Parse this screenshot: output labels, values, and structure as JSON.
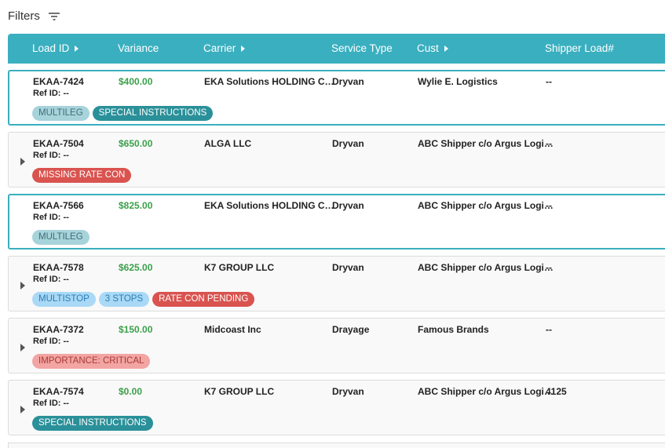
{
  "filters": {
    "label": "Filters"
  },
  "table": {
    "columns": [
      {
        "label": "Load ID",
        "sortable": true
      },
      {
        "label": "Variance",
        "sortable": false
      },
      {
        "label": "Carrier",
        "sortable": true
      },
      {
        "label": "Service Type",
        "sortable": false
      },
      {
        "label": "Cust",
        "sortable": true
      },
      {
        "label": "Shipper Load#",
        "sortable": false
      }
    ],
    "rows": [
      {
        "cells": [
          "EKAA-7424",
          "$400.00",
          "EKA Solutions HOLDING C…",
          "Dryvan",
          "Wylie E. Logistics",
          "--"
        ],
        "ref": "Ref ID: --",
        "highlighted": true,
        "expandable": false,
        "tags": [
          {
            "label": "MULTILEG",
            "background": "#a7d3db",
            "color": "#3f6e77"
          },
          {
            "label": "SPECIAL INSTRUCTIONS",
            "background": "#2a9099",
            "color": "#ffffff"
          }
        ]
      },
      {
        "cells": [
          "EKAA-7504",
          "$650.00",
          "ALGA LLC",
          "Dryvan",
          "ABC Shipper c/o Argus Logi…",
          "--"
        ],
        "ref": "Ref ID: --",
        "highlighted": false,
        "expandable": true,
        "tags": [
          {
            "label": "MISSING RATE CON",
            "background": "#d9534f",
            "color": "#ffffff"
          }
        ]
      },
      {
        "cells": [
          "EKAA-7566",
          "$825.00",
          "EKA Solutions HOLDING C…",
          "Dryvan",
          "ABC Shipper c/o Argus Logi…",
          "--"
        ],
        "ref": "Ref ID: --",
        "highlighted": true,
        "expandable": false,
        "tags": [
          {
            "label": "MULTILEG",
            "background": "#a7d3db",
            "color": "#3f6e77"
          }
        ]
      },
      {
        "cells": [
          "EKAA-7578",
          "$625.00",
          "K7 GROUP LLC",
          "Dryvan",
          "ABC Shipper c/o Argus Logi…",
          "--"
        ],
        "ref": "Ref ID: --",
        "highlighted": false,
        "expandable": true,
        "tags": [
          {
            "label": "MULTISTOP",
            "background": "#a9d9f6",
            "color": "#2d7db3"
          },
          {
            "label": "3 STOPS",
            "background": "#a9d9f6",
            "color": "#2d7db3"
          },
          {
            "label": "RATE CON PENDING",
            "background": "#d9534f",
            "color": "#ffffff"
          }
        ]
      },
      {
        "cells": [
          "EKAA-7372",
          "$150.00",
          "Midcoast Inc",
          "Drayage",
          "Famous Brands",
          "--"
        ],
        "ref": "Ref ID: --",
        "highlighted": false,
        "expandable": true,
        "tags": [
          {
            "label": "IMPORTANCE: CRITICAL",
            "background": "#f2a5a3",
            "color": "#a83a36"
          }
        ]
      },
      {
        "cells": [
          "EKAA-7574",
          "$0.00",
          "K7 GROUP LLC",
          "Dryvan",
          "ABC Shipper c/o Argus Logi…",
          "4125"
        ],
        "ref": "Ref ID: --",
        "highlighted": false,
        "expandable": true,
        "tags": [
          {
            "label": "SPECIAL INSTRUCTIONS",
            "background": "#2a9099",
            "color": "#ffffff"
          }
        ]
      }
    ]
  }
}
